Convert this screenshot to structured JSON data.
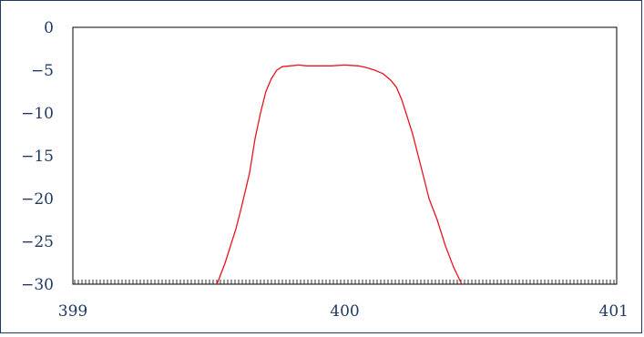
{
  "chart_data": {
    "type": "line",
    "title": "",
    "xlabel": "",
    "ylabel": "",
    "xlim": [
      399,
      401
    ],
    "ylim": [
      -30,
      0
    ],
    "x_ticks": [
      399,
      400,
      401
    ],
    "x_tick_labels": [
      "399",
      "400",
      "401"
    ],
    "y_ticks": [
      0,
      -5,
      -10,
      -15,
      -20,
      -25,
      -30
    ],
    "y_tick_labels": [
      "0",
      "−5",
      "−10",
      "−15",
      "−20",
      "−25",
      "−30"
    ],
    "grid": false,
    "legend": "none",
    "colors": {
      "frame": "#1f3864",
      "axes": "#000000",
      "series": "#e8141c",
      "tick_label": "#1f3864"
    },
    "series": [
      {
        "x": [
          399.53,
          399.56,
          399.6,
          399.62,
          399.65,
          399.67,
          399.69,
          399.71,
          399.73,
          399.75,
          399.77,
          399.8,
          399.83,
          399.86,
          399.9,
          399.95,
          400.0,
          400.05,
          400.08,
          400.11,
          400.14,
          400.17,
          400.19,
          400.21,
          400.23,
          400.25,
          400.27,
          400.29,
          400.31,
          400.34,
          400.37,
          400.4,
          400.43
        ],
        "values": [
          -30,
          -27.5,
          -23.5,
          -21,
          -17,
          -13,
          -10,
          -7.5,
          -6,
          -5,
          -4.6,
          -4.5,
          -4.4,
          -4.5,
          -4.5,
          -4.5,
          -4.4,
          -4.5,
          -4.7,
          -5,
          -5.4,
          -6.2,
          -7,
          -8.5,
          -10.5,
          -12.5,
          -15,
          -17.5,
          -20,
          -22.5,
          -25.5,
          -28,
          -30
        ]
      }
    ]
  }
}
